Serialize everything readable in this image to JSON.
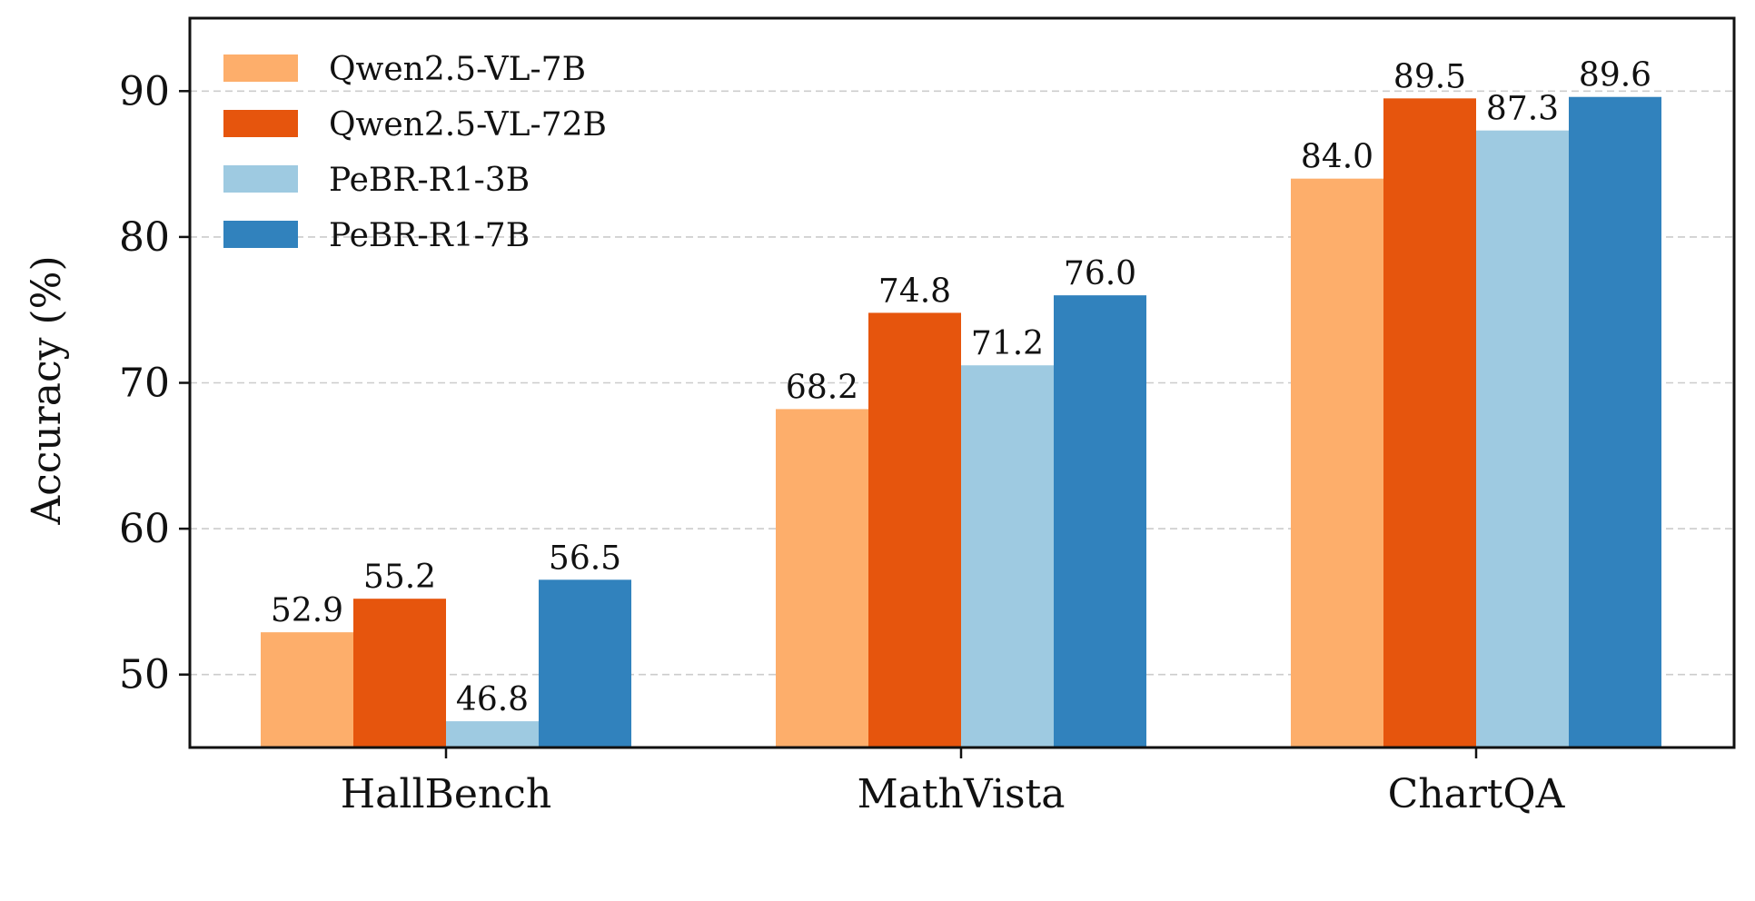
{
  "chart_data": {
    "type": "bar",
    "title": "",
    "xlabel": "",
    "ylabel": "Accuracy (%)",
    "ylim": [
      45,
      95
    ],
    "yticks": [
      50,
      60,
      70,
      80,
      90
    ],
    "grid": "horizontal dashed",
    "legend_position": "top-left",
    "categories": [
      "HallBench",
      "MathVista",
      "ChartQA"
    ],
    "series": [
      {
        "name": "Qwen2.5-VL-7B",
        "color": "#fdae6b",
        "values": [
          52.9,
          68.2,
          84.0
        ],
        "labels": [
          "52.9",
          "68.2",
          "84.0"
        ]
      },
      {
        "name": "Qwen2.5-VL-72B",
        "color": "#e6550d",
        "values": [
          55.2,
          74.8,
          89.5
        ],
        "labels": [
          "55.2",
          "74.8",
          "89.5"
        ]
      },
      {
        "name": "PeBR-R1-3B",
        "color": "#9ecae1",
        "values": [
          46.8,
          71.2,
          87.3
        ],
        "labels": [
          "46.8",
          "71.2",
          "87.3"
        ]
      },
      {
        "name": "PeBR-R1-7B",
        "color": "#3182bd",
        "values": [
          56.5,
          76.0,
          89.6
        ],
        "labels": [
          "56.5",
          "76.0",
          "89.6"
        ]
      }
    ]
  }
}
